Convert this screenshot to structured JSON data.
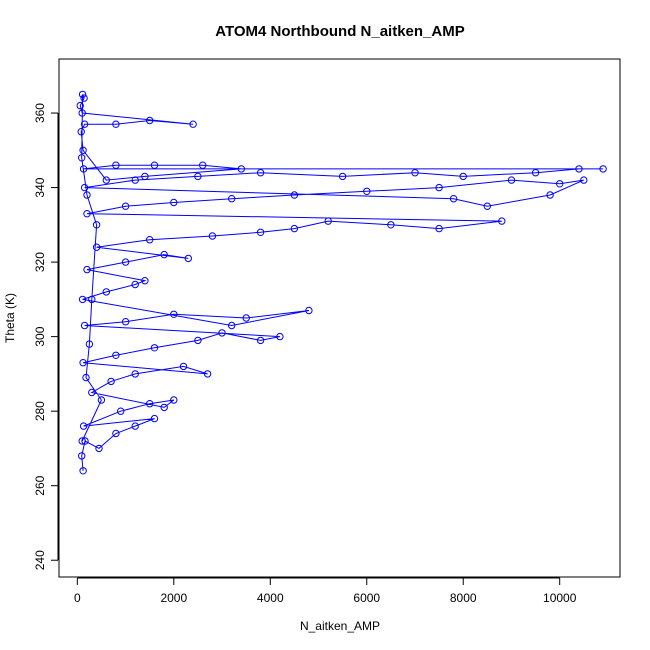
{
  "chart_data": {
    "type": "scatter",
    "title": "ATOM4 Northbound N_aitken_AMP",
    "xlabel": "N_aitken_AMP",
    "ylabel": "Theta (K)",
    "xlim": [
      -380,
      11250
    ],
    "ylim": [
      235.5,
      374.5
    ],
    "xticks": [
      0,
      2000,
      4000,
      6000,
      8000,
      10000
    ],
    "yticks": [
      240,
      260,
      280,
      300,
      320,
      340,
      360
    ],
    "grid": false,
    "legend": "none",
    "marker": "open-circle",
    "connected": true,
    "series_color": "#0000ff",
    "series": [
      {
        "points": [
          [
            120,
            264
          ],
          [
            90,
            268
          ],
          [
            160,
            272
          ],
          [
            450,
            270
          ],
          [
            800,
            274
          ],
          [
            1200,
            276
          ],
          [
            1600,
            278
          ],
          [
            130,
            276
          ],
          [
            900,
            280
          ],
          [
            1500,
            282
          ],
          [
            2000,
            283
          ],
          [
            1800,
            281
          ],
          [
            300,
            285
          ],
          [
            700,
            288
          ],
          [
            1200,
            290
          ],
          [
            2200,
            292
          ],
          [
            2700,
            290
          ],
          [
            120,
            293
          ],
          [
            800,
            295
          ],
          [
            1600,
            297
          ],
          [
            2500,
            299
          ],
          [
            3000,
            301
          ],
          [
            3800,
            299
          ],
          [
            4200,
            300
          ],
          [
            150,
            303
          ],
          [
            1000,
            304
          ],
          [
            2000,
            306
          ],
          [
            3500,
            305
          ],
          [
            4800,
            307
          ],
          [
            3200,
            303
          ],
          [
            110,
            310
          ],
          [
            600,
            312
          ],
          [
            1200,
            314
          ],
          [
            1400,
            315
          ],
          [
            200,
            318
          ],
          [
            1000,
            320
          ],
          [
            1800,
            322
          ],
          [
            2300,
            321
          ],
          [
            400,
            324
          ],
          [
            1500,
            326
          ],
          [
            2800,
            327
          ],
          [
            3800,
            328
          ],
          [
            4500,
            329
          ],
          [
            5200,
            331
          ],
          [
            6500,
            330
          ],
          [
            7500,
            329
          ],
          [
            8800,
            331
          ],
          [
            200,
            333
          ],
          [
            1000,
            335
          ],
          [
            2000,
            336
          ],
          [
            3200,
            337
          ],
          [
            4500,
            338
          ],
          [
            6000,
            339
          ],
          [
            7500,
            340
          ],
          [
            9000,
            342
          ],
          [
            10000,
            341
          ],
          [
            10500,
            342
          ],
          [
            9800,
            338
          ],
          [
            8500,
            335
          ],
          [
            7800,
            337
          ],
          [
            150,
            340
          ],
          [
            1200,
            342
          ],
          [
            2500,
            343
          ],
          [
            3800,
            344
          ],
          [
            5500,
            343
          ],
          [
            7000,
            344
          ],
          [
            8000,
            343
          ],
          [
            9500,
            344
          ],
          [
            10400,
            345
          ],
          [
            10900,
            345
          ],
          [
            130,
            345
          ],
          [
            800,
            346
          ],
          [
            1600,
            346
          ],
          [
            2600,
            346
          ],
          [
            3400,
            345
          ],
          [
            1400,
            343
          ],
          [
            600,
            342
          ],
          [
            120,
            350
          ],
          [
            80,
            355
          ],
          [
            150,
            357
          ],
          [
            800,
            357
          ],
          [
            1500,
            358
          ],
          [
            2400,
            357
          ],
          [
            100,
            360
          ],
          [
            60,
            362
          ],
          [
            140,
            364
          ],
          [
            110,
            365
          ],
          [
            90,
            348
          ],
          [
            200,
            338
          ],
          [
            400,
            330
          ],
          [
            300,
            310
          ],
          [
            250,
            298
          ],
          [
            180,
            289
          ],
          [
            500,
            283
          ],
          [
            100,
            272
          ]
        ]
      }
    ]
  }
}
